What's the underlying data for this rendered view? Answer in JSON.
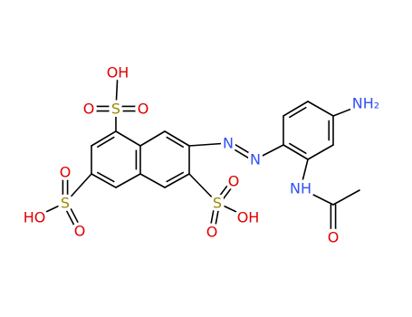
{
  "atoms": [
    {
      "label": "OH"
    },
    {
      "label": "O"
    },
    {
      "label": "S"
    },
    {
      "label": "O"
    },
    {
      "label": "HO"
    },
    {
      "label": "S"
    },
    {
      "label": "O"
    },
    {
      "label": "O"
    },
    {
      "label": "S"
    },
    {
      "label": "O"
    },
    {
      "label": "O"
    },
    {
      "label": "OH"
    },
    {
      "label": "N"
    },
    {
      "label": "N"
    },
    {
      "label": "NH₂"
    },
    {
      "label": "NH"
    },
    {
      "label": "O"
    }
  ]
}
